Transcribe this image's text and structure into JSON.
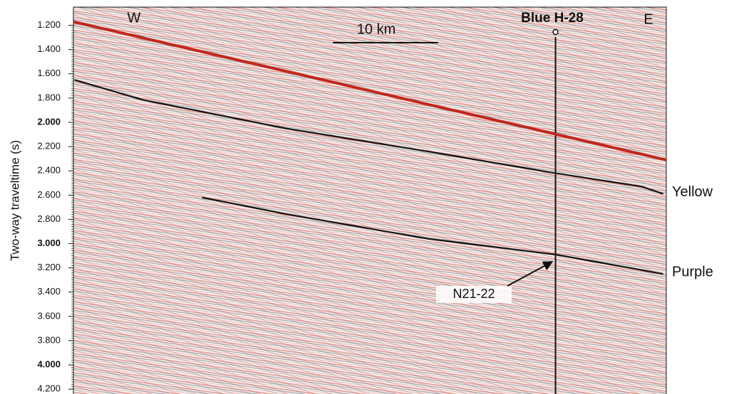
{
  "chart_data": {
    "type": "line",
    "ylabel": "Two-way traveltime (s)",
    "ylim": [
      4.24,
      1.05
    ],
    "y_inverted": true,
    "yticks": [
      {
        "value": 1.2,
        "label": "1.200"
      },
      {
        "value": 1.4,
        "label": "1.400"
      },
      {
        "value": 1.6,
        "label": "1.600"
      },
      {
        "value": 1.8,
        "label": "1.800"
      },
      {
        "value": 2.0,
        "label": "2.000"
      },
      {
        "value": 2.2,
        "label": "2.200"
      },
      {
        "value": 2.4,
        "label": "2.400"
      },
      {
        "value": 2.6,
        "label": "2.600"
      },
      {
        "value": 2.8,
        "label": "2.800"
      },
      {
        "value": 3.0,
        "label": "3.000"
      },
      {
        "value": 3.2,
        "label": "3.200"
      },
      {
        "value": 3.4,
        "label": "3.400"
      },
      {
        "value": 3.6,
        "label": "3.600"
      },
      {
        "value": 3.8,
        "label": "3.800"
      },
      {
        "value": 4.0,
        "label": "4.000"
      },
      {
        "value": 4.2,
        "label": "4.200"
      }
    ],
    "xlim": [
      0,
      56.2
    ],
    "series": [
      {
        "color": "#c0281c",
        "x": [
          0,
          56.2
        ],
        "values": [
          1.17,
          2.31
        ]
      },
      {
        "name": "Yellow",
        "color": "#111111",
        "x": [
          0.1,
          6.6,
          20.1,
          33.6,
          45.7,
          53.9,
          55.9
        ],
        "values": [
          1.65,
          1.815,
          2.05,
          2.24,
          2.42,
          2.53,
          2.59
        ]
      },
      {
        "name": "Purple",
        "color": "#111111",
        "x": [
          12.2,
          20.1,
          33.6,
          45.7,
          55.9
        ],
        "values": [
          2.62,
          2.755,
          2.96,
          3.09,
          3.25
        ]
      }
    ],
    "annotations": {
      "west": "W",
      "east": "E",
      "well": "Blue H-28",
      "line_name": "N21-22",
      "scale": "10 km"
    },
    "well_x": 45.7
  }
}
